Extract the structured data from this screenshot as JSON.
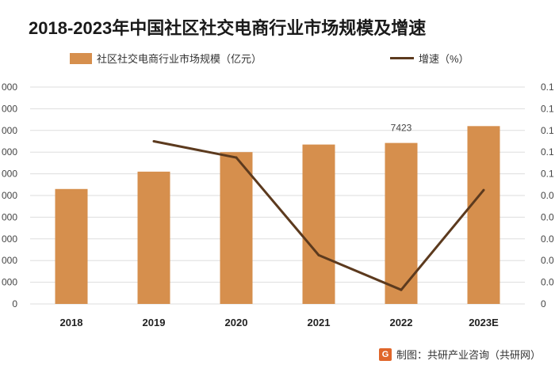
{
  "chart_data": {
    "type": "bar",
    "title": "2018-2023年中国社区社交电商行业市场规模及增速",
    "categories": [
      "2018",
      "2019",
      "2020",
      "2021",
      "2022",
      "2023E"
    ],
    "series": [
      {
        "name": "社区社交电商行业市场规模（亿元）",
        "type": "bar",
        "axis": "left",
        "values": [
          5300,
          6100,
          7000,
          7350,
          7423,
          8200
        ],
        "data_labels": {
          "4": "7423"
        }
      },
      {
        "name": "增速（%）",
        "type": "line",
        "axis": "right",
        "values": [
          null,
          0.15,
          0.135,
          0.045,
          0.013,
          0.105
        ]
      }
    ],
    "y_left": {
      "ticks": [
        "0",
        "000",
        "000",
        "000",
        "000",
        "000",
        "000",
        "000",
        "000",
        "000",
        "000"
      ],
      "ylim": [
        0,
        10000
      ]
    },
    "y_right": {
      "ticks": [
        "0",
        "0.0",
        "0.0",
        "0.0",
        "0.0",
        "0.0",
        "0.1",
        "0.1",
        "0.1",
        "0.1",
        "0.1"
      ],
      "ylim": [
        0,
        0.2
      ]
    },
    "colors": {
      "bar": "#d68f4d",
      "line": "#5c3a1e",
      "grid": "#dddddd"
    },
    "grid": true,
    "legend_placement": "top"
  },
  "footer": {
    "logo_text": "G",
    "source": "制图：共研产业咨询（共研网）"
  }
}
